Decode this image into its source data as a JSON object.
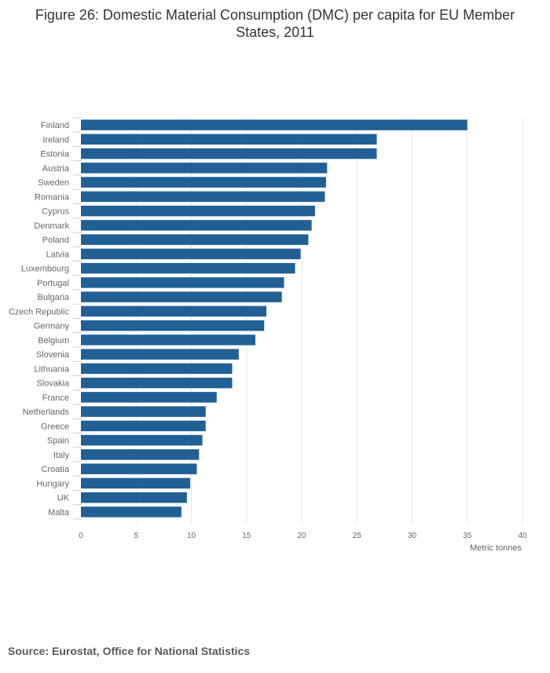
{
  "page": {
    "title": "Figure 26: Domestic Material Consumption (DMC) per capita for EU Member States, 2011",
    "source": "Source: Eurostat, Office for National Statistics"
  },
  "colors": {
    "bar": "#206095",
    "grid": "#e6e6e6",
    "text": "#666666"
  },
  "chart_data": {
    "type": "bar",
    "orientation": "horizontal",
    "title": "Figure 26: Domestic Material Consumption (DMC) per capita for EU Member States, 2011",
    "xlabel": "Metric tonnes",
    "ylabel": "",
    "xlim": [
      0,
      40
    ],
    "xticks": [
      0,
      5,
      10,
      15,
      20,
      25,
      30,
      35,
      40
    ],
    "grid": true,
    "categories": [
      "Finland",
      "Ireland",
      "Estonia",
      "Austria",
      "Sweden",
      "Romania",
      "Cyprus",
      "Denmark",
      "Poland",
      "Latvia",
      "Luxembourg",
      "Portugal",
      "Bulgaria",
      "Czech Republic",
      "Germany",
      "Belgium",
      "Slovenia",
      "Lithuania",
      "Slovakia",
      "France",
      "Netherlands",
      "Greece",
      "Spain",
      "Italy",
      "Croatia",
      "Hungary",
      "UK",
      "Malta"
    ],
    "values": [
      35.0,
      26.8,
      26.8,
      22.3,
      22.2,
      22.1,
      21.2,
      20.9,
      20.6,
      19.9,
      19.4,
      18.4,
      18.2,
      16.8,
      16.6,
      15.8,
      14.3,
      13.7,
      13.7,
      12.3,
      11.3,
      11.3,
      11.0,
      10.7,
      10.5,
      9.9,
      9.6,
      9.1
    ]
  }
}
